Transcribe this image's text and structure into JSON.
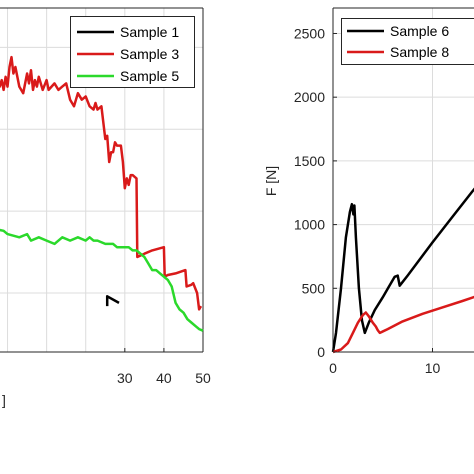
{
  "chart_data": [
    {
      "type": "line",
      "xlim": [
        -5,
        50
      ],
      "ylim": [
        -5,
        100
      ],
      "x_ticks": [
        "30",
        "40",
        "50"
      ],
      "xlabel_fragment": "]",
      "legend_position": "top-right",
      "grid": true,
      "series": [
        {
          "name": "Sample 1",
          "color": "#000000",
          "points": [
            [
              25.5,
              9
            ],
            [
              25.5,
              12
            ],
            [
              28.5,
              10
            ]
          ]
        },
        {
          "name": "Sample 3",
          "color": "#d91a1a",
          "points": [
            [
              -5,
              72
            ],
            [
              -2,
              76
            ],
            [
              -1.5,
              78
            ],
            [
              -1,
              75
            ],
            [
              -0.5,
              79
            ],
            [
              0,
              76
            ],
            [
              0.5,
              82
            ],
            [
              1,
              85
            ],
            [
              1.5,
              80
            ],
            [
              2,
              82
            ],
            [
              3,
              76
            ],
            [
              4,
              74
            ],
            [
              5,
              80
            ],
            [
              5.5,
              77
            ],
            [
              6,
              81
            ],
            [
              6.5,
              75
            ],
            [
              7,
              78
            ],
            [
              7.5,
              76
            ],
            [
              8,
              79
            ],
            [
              9,
              75
            ],
            [
              10,
              78
            ],
            [
              10.5,
              75
            ],
            [
              12,
              77
            ],
            [
              13,
              75
            ],
            [
              14,
              76
            ],
            [
              15,
              77
            ],
            [
              16,
              72
            ],
            [
              17,
              70
            ],
            [
              18,
              74
            ],
            [
              19,
              72
            ],
            [
              20,
              73
            ],
            [
              21,
              70
            ],
            [
              22,
              69
            ],
            [
              22.5,
              71
            ],
            [
              23,
              69
            ],
            [
              24,
              70
            ],
            [
              25,
              60
            ],
            [
              25.5,
              61
            ],
            [
              26,
              53
            ],
            [
              26.5,
              56
            ],
            [
              27,
              56
            ],
            [
              27.5,
              59
            ],
            [
              28,
              58
            ],
            [
              29,
              58
            ],
            [
              29.5,
              53
            ],
            [
              30,
              45
            ],
            [
              30.5,
              48
            ],
            [
              31,
              46
            ],
            [
              31.5,
              49
            ],
            [
              32,
              49
            ],
            [
              33,
              48
            ],
            [
              33.2,
              24
            ],
            [
              35,
              25
            ],
            [
              37,
              26
            ],
            [
              40,
              27
            ],
            [
              40.2,
              18
            ],
            [
              41,
              18.5
            ],
            [
              43,
              19
            ],
            [
              45.5,
              20
            ],
            [
              45.8,
              15
            ],
            [
              47,
              15.5
            ],
            [
              47.5,
              16
            ],
            [
              48.5,
              13
            ],
            [
              49,
              8
            ],
            [
              49.5,
              9
            ]
          ]
        },
        {
          "name": "Sample 5",
          "color": "#2bd92b",
          "points": [
            [
              -5,
              33
            ],
            [
              -1,
              32
            ],
            [
              0,
              31
            ],
            [
              3,
              30
            ],
            [
              5,
              31
            ],
            [
              6,
              29
            ],
            [
              8,
              30
            ],
            [
              10,
              29
            ],
            [
              12,
              28
            ],
            [
              14,
              30
            ],
            [
              16,
              29
            ],
            [
              18,
              30
            ],
            [
              20,
              29
            ],
            [
              21,
              30
            ],
            [
              22,
              29
            ],
            [
              23,
              29
            ],
            [
              25,
              28
            ],
            [
              26,
              28
            ],
            [
              27,
              28
            ],
            [
              28,
              27
            ],
            [
              29,
              27
            ],
            [
              30,
              27
            ],
            [
              31,
              27
            ],
            [
              32,
              26
            ],
            [
              33,
              26
            ],
            [
              34,
              25
            ],
            [
              35,
              24
            ],
            [
              36,
              22
            ],
            [
              37,
              20
            ],
            [
              38,
              20
            ],
            [
              39,
              19
            ],
            [
              40,
              18
            ],
            [
              41,
              17
            ],
            [
              42,
              15
            ],
            [
              43,
              10
            ],
            [
              44,
              8
            ],
            [
              45,
              7
            ],
            [
              46,
              5
            ],
            [
              47,
              4
            ],
            [
              48,
              3
            ],
            [
              49,
              2
            ],
            [
              50,
              1.5
            ]
          ]
        }
      ]
    },
    {
      "type": "line",
      "xlim": [
        0,
        20
      ],
      "ylim": [
        0,
        2700
      ],
      "x_ticks": [
        "0",
        "10"
      ],
      "y_ticks": [
        "0",
        "500",
        "1000",
        "1500",
        "2000",
        "2500"
      ],
      "ylabel": "F [N]",
      "legend_position": "top-left",
      "grid": true,
      "series": [
        {
          "name": "Sample 6",
          "color": "#000000",
          "points": [
            [
              0,
              0
            ],
            [
              0.3,
              150
            ],
            [
              0.8,
              500
            ],
            [
              1.3,
              900
            ],
            [
              1.7,
              1100
            ],
            [
              1.9,
              1160
            ],
            [
              2.05,
              1080
            ],
            [
              2.15,
              1150
            ],
            [
              2.3,
              900
            ],
            [
              2.6,
              500
            ],
            [
              2.9,
              250
            ],
            [
              3.2,
              150
            ],
            [
              3.6,
              230
            ],
            [
              4.2,
              330
            ],
            [
              5.0,
              430
            ],
            [
              5.6,
              510
            ],
            [
              6.2,
              590
            ],
            [
              6.5,
              600
            ],
            [
              6.7,
              520
            ],
            [
              7.5,
              600
            ],
            [
              10,
              860
            ],
            [
              12,
              1060
            ],
            [
              14,
              1260
            ],
            [
              15.5,
              1400
            ]
          ]
        },
        {
          "name": "Sample 8",
          "color": "#d91a1a",
          "points": [
            [
              0,
              0
            ],
            [
              0.8,
              20
            ],
            [
              1.5,
              70
            ],
            [
              2.0,
              150
            ],
            [
              2.5,
              230
            ],
            [
              3.0,
              290
            ],
            [
              3.3,
              310
            ],
            [
              3.6,
              280
            ],
            [
              4.0,
              230
            ],
            [
              4.3,
              200
            ],
            [
              4.5,
              170
            ],
            [
              4.7,
              150
            ],
            [
              5.5,
              180
            ],
            [
              7,
              240
            ],
            [
              9,
              300
            ],
            [
              11,
              350
            ],
            [
              13,
              400
            ],
            [
              14.5,
              440
            ]
          ]
        }
      ]
    }
  ]
}
